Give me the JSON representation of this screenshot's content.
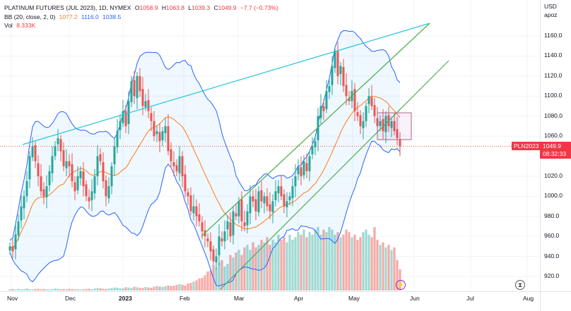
{
  "legend": {
    "title": "PLATINUM FUTURES (JUL 2023), 1D, NYMEX",
    "o_label": "O",
    "o": "1058.9",
    "h_label": "H",
    "h": "1063.8",
    "l_label": "L",
    "l": "1039.3",
    "c_label": "C",
    "c": "1049.9",
    "chg": "−7.7 (−0.73%)",
    "bb_label": "BB (20, close, 2, 0)",
    "bb_basis": "1077.2",
    "bb_upper": "1116.0",
    "bb_lower": "1038.5",
    "vol_label": "Vol",
    "vol": "8.333K"
  },
  "price_axis": {
    "unit1": "USD",
    "unit2": "apoz",
    "ticks": [
      "1160.0",
      "1140.0",
      "1120.0",
      "1100.0",
      "1080.0",
      "1060.0",
      "1020.0",
      "1000.0",
      "980.0",
      "960.0",
      "940.0",
      "920.0"
    ]
  },
  "time_axis": {
    "ticks": [
      "Nov",
      "Dec",
      "2023",
      "Feb",
      "Mar",
      "Apr",
      "May",
      "Jun",
      "Jul",
      "Aug"
    ]
  },
  "last_price": {
    "symbol": "PLN2023",
    "price": "1049.9",
    "countdown": "08:32:33"
  },
  "colors": {
    "up": "#26a69a",
    "down": "#ef5350",
    "bb_basis": "#ff7a1a",
    "bb_band": "#2962ff",
    "trend_cyan": "#26c6da",
    "trend_green": "#4caf50"
  },
  "chart_data": {
    "type": "candlestick",
    "title": "PLATINUM FUTURES (JUL 2023), 1D, NYMEX",
    "ylim": [
      910,
      1172
    ],
    "ylabel": "USD apoz",
    "x_start": "Nov 2022",
    "x_end": "late May 2023",
    "closes": [
      950,
      945,
      962,
      975,
      990,
      1000,
      1015,
      1040,
      1050,
      1035,
      1020,
      1005,
      1000,
      1010,
      1025,
      1040,
      1050,
      1058,
      1045,
      1030,
      1035,
      1030,
      1015,
      1005,
      1020,
      1025,
      1010,
      1000,
      995,
      1005,
      1020,
      1040,
      1035,
      1015,
      1000,
      1010,
      1030,
      1050,
      1065,
      1075,
      1085,
      1070,
      1095,
      1115,
      1100,
      1120,
      1105,
      1090,
      1095,
      1085,
      1075,
      1060,
      1065,
      1055,
      1065,
      1070,
      1045,
      1035,
      1030,
      1025,
      1040,
      1020,
      1005,
      1000,
      985,
      990,
      980,
      975,
      965,
      960,
      955,
      945,
      935,
      940,
      960,
      955,
      965,
      975,
      960,
      985,
      980,
      995,
      975,
      970,
      985,
      1000,
      995,
      985,
      1005,
      995,
      1000,
      990,
      985,
      995,
      1005,
      1010,
      1000,
      990,
      995,
      1000,
      1010,
      1020,
      1030,
      1020,
      1035,
      1025,
      1040,
      1050,
      1055,
      1080,
      1090,
      1085,
      1105,
      1110,
      1130,
      1145,
      1120,
      1130,
      1110,
      1100,
      1095,
      1105,
      1085,
      1080,
      1070,
      1075,
      1090,
      1100,
      1090,
      1080,
      1070,
      1075,
      1065,
      1080,
      1070,
      1075,
      1065,
      1058,
      1050
    ],
    "volume_k": [
      0.5,
      0.6,
      0.4,
      0.7,
      0.5,
      0.6,
      0.8,
      0.5,
      0.4,
      0.6,
      0.7,
      0.5,
      0.6,
      0.5,
      0.4,
      0.6,
      0.8,
      0.7,
      0.5,
      0.6,
      0.5,
      0.7,
      0.6,
      0.5,
      0.6,
      0.4,
      0.5,
      0.6,
      0.7,
      0.5,
      0.8,
      1.0,
      0.9,
      0.7,
      0.6,
      0.8,
      1.0,
      1.2,
      1.1,
      0.9,
      1.0,
      1.3,
      1.2,
      1.0,
      1.5,
      1.3,
      1.1,
      1.0,
      1.4,
      1.2,
      1.1,
      1.5,
      1.8,
      1.6,
      1.4,
      1.7,
      2.0,
      1.8,
      1.9,
      2.2,
      2.5,
      2.3,
      2.0,
      2.8,
      3.0,
      3.5,
      4.0,
      4.8,
      5.0,
      6.0,
      7.5,
      8.0,
      10.0,
      9.0,
      11.0,
      12.0,
      9.5,
      10.5,
      14.0,
      13.0,
      15.0,
      16.0,
      14.0,
      17.0,
      18.0,
      16.0,
      19.0,
      17.0,
      18.0,
      20.0,
      19.0,
      21.0,
      18.0,
      20.0,
      19.0,
      22.0,
      20.0,
      21.0,
      19.0,
      22.0,
      20.0,
      21.0,
      23.0,
      22.0,
      24.0,
      21.0,
      23.0,
      22.0,
      24.0,
      25.0,
      22.0,
      24.0,
      23.0,
      25.0,
      24.0,
      22.0,
      23.0,
      21.0,
      22.0,
      24.0,
      23.0,
      21.0,
      22.0,
      20.0,
      21.0,
      23.0,
      24.0,
      22.0,
      21.0,
      25.0,
      20.0,
      18.0,
      19.0,
      17.0,
      18.0,
      16.0,
      17.0,
      12.0,
      8.333
    ],
    "indicators": [
      "BB (20, close, 2, 0)",
      "Vol"
    ]
  }
}
